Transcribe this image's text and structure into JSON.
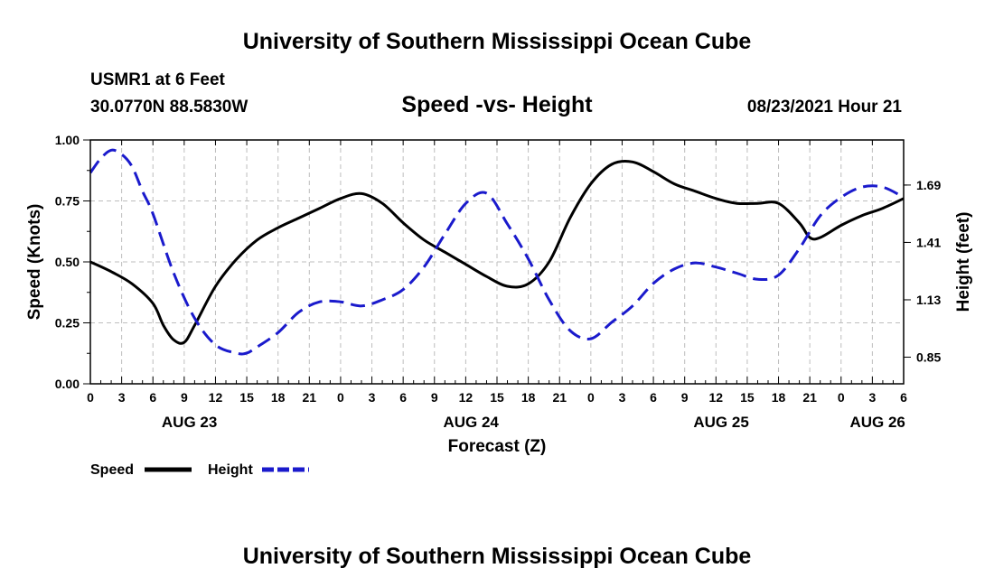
{
  "header": {
    "title_top": "University of Southern Mississippi Ocean Cube",
    "station": "USMR1 at 6 Feet",
    "coords": "30.0770N  88.5830W",
    "subtitle": "Speed -vs- Height",
    "timestamp": "08/23/2021 Hour 21",
    "title_bottom": "University of Southern Mississippi Ocean Cube"
  },
  "chart_data": {
    "type": "line",
    "title": "Speed -vs- Height",
    "xlabel": "Forecast (Z)",
    "ylabel": "Speed (Knots)",
    "y2label": "Height (feet)",
    "x_unit": "hours from 08/23 00Z",
    "xlim": [
      0,
      78
    ],
    "ylim": [
      0,
      1.0
    ],
    "y2lim": [
      0.72,
      1.91
    ],
    "grid": true,
    "x_ticks": [
      0,
      3,
      6,
      9,
      12,
      15,
      18,
      21,
      24,
      27,
      30,
      33,
      36,
      39,
      42,
      45,
      48,
      51,
      54,
      57,
      60,
      63,
      66,
      69,
      72,
      75,
      78
    ],
    "x_tick_labels": [
      "0",
      "3",
      "6",
      "9",
      "12",
      "15",
      "18",
      "21",
      "0",
      "3",
      "6",
      "9",
      "12",
      "15",
      "18",
      "21",
      "0",
      "3",
      "6",
      "9",
      "12",
      "15",
      "18",
      "21",
      "0",
      "3",
      "6"
    ],
    "y_ticks": [
      0,
      0.25,
      0.5,
      0.75,
      1.0
    ],
    "y_tick_labels": [
      "0.00",
      "0.25",
      "0.50",
      "0.75",
      "1.00"
    ],
    "y2_ticks": [
      0.85,
      1.13,
      1.41,
      1.69
    ],
    "y2_tick_labels": [
      "0.85",
      "1.13",
      "1.41",
      "1.69"
    ],
    "date_labels": [
      {
        "label": "AUG 23",
        "x": 9.5
      },
      {
        "label": "AUG 24",
        "x": 36.5
      },
      {
        "label": "AUG 25",
        "x": 60.5
      },
      {
        "label": "AUG 26",
        "x": 75.5
      }
    ],
    "series": [
      {
        "name": "Speed",
        "axis": "left",
        "color": "#000000",
        "dash": "solid",
        "x": [
          0,
          2,
          4,
          6,
          7,
          8,
          9,
          10,
          12,
          14,
          16,
          18,
          20,
          22,
          24,
          26,
          28,
          30,
          32,
          34,
          36,
          38,
          40,
          42,
          44,
          46,
          48,
          50,
          52,
          54,
          56,
          58,
          60,
          62,
          64,
          66,
          68,
          69,
          70,
          72,
          74,
          76,
          78
        ],
        "values": [
          0.5,
          0.46,
          0.41,
          0.33,
          0.24,
          0.18,
          0.17,
          0.24,
          0.4,
          0.51,
          0.59,
          0.64,
          0.68,
          0.72,
          0.76,
          0.78,
          0.74,
          0.66,
          0.59,
          0.54,
          0.49,
          0.44,
          0.4,
          0.41,
          0.5,
          0.68,
          0.82,
          0.9,
          0.91,
          0.87,
          0.82,
          0.79,
          0.76,
          0.74,
          0.74,
          0.74,
          0.66,
          0.6,
          0.6,
          0.65,
          0.69,
          0.72,
          0.76
        ]
      },
      {
        "name": "Height",
        "axis": "right",
        "color": "#1a1acc",
        "dash": "dashed",
        "x": [
          0,
          1,
          2,
          3,
          4,
          5,
          6,
          8,
          10,
          12,
          14,
          15,
          16,
          18,
          20,
          22,
          24,
          26,
          28,
          30,
          32,
          34,
          36,
          38,
          40,
          42,
          44,
          46,
          48,
          50,
          52,
          54,
          56,
          58,
          60,
          62,
          64,
          66,
          68,
          70,
          72,
          74,
          76,
          78
        ],
        "values": [
          1.75,
          1.82,
          1.86,
          1.84,
          1.78,
          1.66,
          1.55,
          1.26,
          1.04,
          0.91,
          0.87,
          0.87,
          0.9,
          0.97,
          1.07,
          1.12,
          1.12,
          1.1,
          1.13,
          1.18,
          1.29,
          1.45,
          1.6,
          1.65,
          1.5,
          1.33,
          1.13,
          0.98,
          0.94,
          1.02,
          1.1,
          1.21,
          1.28,
          1.31,
          1.29,
          1.26,
          1.23,
          1.25,
          1.38,
          1.54,
          1.63,
          1.68,
          1.68,
          1.63
        ]
      }
    ],
    "legend": [
      {
        "label": "Speed",
        "style": "solid",
        "color": "#000000"
      },
      {
        "label": "Height",
        "style": "dashed",
        "color": "#1a1acc"
      }
    ]
  }
}
